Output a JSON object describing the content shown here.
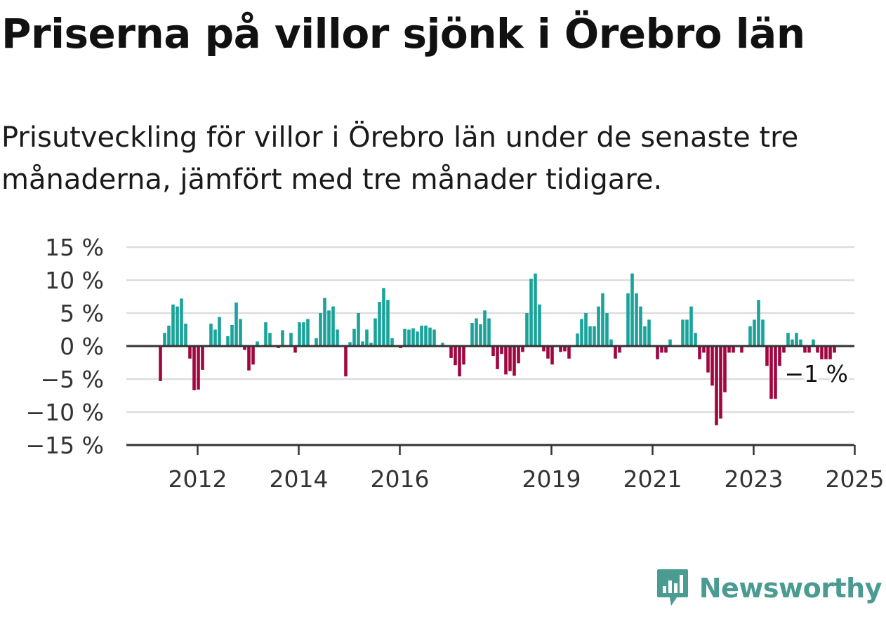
{
  "title": "Priserna på villor sjönk i Örebro län",
  "subtitle": "Prisutveckling för villor i Örebro län under de senaste tre månaderna, jämfört med tre månader tidigare.",
  "brand": {
    "name": "Newsworthy",
    "logo_icon": "bar-chart-speech-bubble-icon"
  },
  "colors": {
    "positive": "#1aa39a",
    "negative": "#a0063f",
    "grid": "#dddddd",
    "axis": "#333333",
    "brand": "#4a9b91"
  },
  "chart_data": {
    "type": "bar",
    "ylim": [
      -15,
      15
    ],
    "yticks": [
      15,
      10,
      5,
      0,
      -5,
      -10,
      -15
    ],
    "ytick_labels": [
      "15 %",
      "10 %",
      "5 %",
      "0 %",
      "−5 %",
      "−10 %",
      "−15 %"
    ],
    "xticks": [
      {
        "label": "2012",
        "index": 9
      },
      {
        "label": "2014",
        "index": 33
      },
      {
        "label": "2016",
        "index": 57
      },
      {
        "label": "2019",
        "index": 93
      },
      {
        "label": "2021",
        "index": 117
      },
      {
        "label": "2023",
        "index": 141
      },
      {
        "label": "2025",
        "index": 165
      }
    ],
    "grid": true,
    "last_value_label": "−1 %",
    "values": [
      -5.3,
      2,
      3.1,
      6.3,
      6,
      7.2,
      3.4,
      -1.9,
      -6.7,
      -6.6,
      -3.6,
      0,
      3.4,
      2.5,
      4.4,
      0,
      1.5,
      3.2,
      6.6,
      4.1,
      -0.6,
      -3.7,
      -2.8,
      0.7,
      0,
      3.6,
      2,
      0,
      -0.3,
      2.4,
      0,
      2,
      -1,
      3.6,
      3.6,
      4.1,
      0,
      1.2,
      5,
      7.3,
      5.4,
      6,
      2.5,
      0,
      -4.6,
      0.6,
      2.6,
      5,
      0.7,
      2.5,
      0.5,
      4.2,
      6.7,
      8.8,
      7,
      1.2,
      0,
      -0.3,
      2.6,
      2.5,
      2.7,
      2.2,
      3.1,
      3.1,
      2.8,
      2.5,
      0,
      0.5,
      0,
      -1.8,
      -2.9,
      -4.6,
      -2.8,
      0,
      3.5,
      4.2,
      3.3,
      5.4,
      4.2,
      -1.5,
      -3.5,
      -1.2,
      -4.3,
      -3.8,
      -4.5,
      -2.6,
      -0.9,
      5,
      10.2,
      11,
      6.3,
      -0.8,
      -1.9,
      -2.8,
      0,
      -0.9,
      -0.8,
      -1.9,
      0,
      1.9,
      4.1,
      5,
      3,
      3,
      6,
      8,
      5,
      1,
      -1.9,
      -1,
      0,
      8,
      11,
      8,
      6,
      3,
      4,
      0,
      -2,
      -1,
      -1,
      1,
      0,
      0,
      4,
      4,
      6,
      2,
      -2,
      -1,
      -4,
      -6,
      -12,
      -11,
      -7,
      -1,
      -1,
      0,
      -1,
      0,
      3,
      4,
      7,
      4,
      -3,
      -8,
      -8,
      -3,
      -1,
      2,
      1,
      2,
      1,
      -1,
      -1,
      1,
      -1,
      -2,
      -2,
      -2,
      -1
    ]
  }
}
